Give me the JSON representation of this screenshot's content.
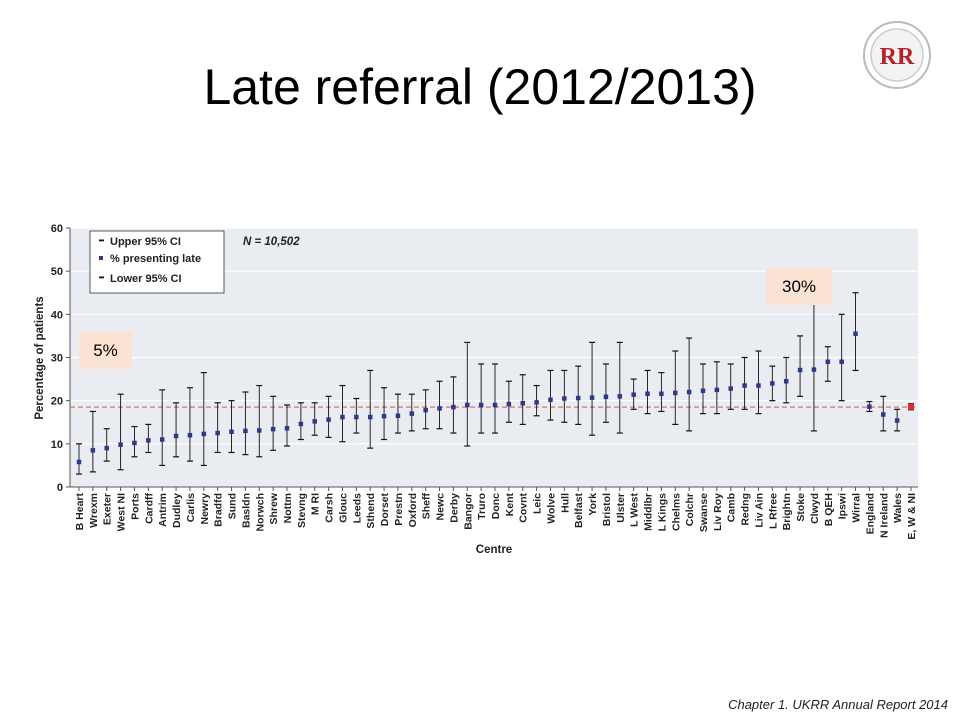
{
  "slide": {
    "title": "Late referral (2012/2013)",
    "caption": "Chapter 1. UKRR Annual Report 2014",
    "logo_text": "RR",
    "callouts": [
      {
        "text": "5%"
      },
      {
        "text": "30%"
      }
    ]
  },
  "colors": {
    "plot_bg": "#e9edf2",
    "marker": "#2b3a8c",
    "marker_highlight": "#e03030",
    "whisker": "#111111",
    "reference_line": "#e07070",
    "callout_bg": "#fbe3d3",
    "logo_red": "#b5222a"
  },
  "chart_data": {
    "type": "scatter",
    "title": "",
    "xlabel": "Centre",
    "ylabel": "Percentage of patients",
    "ylim": [
      0,
      60
    ],
    "yticks": [
      0,
      10,
      20,
      30,
      40,
      50,
      60
    ],
    "grid": true,
    "legend_position": "top-left",
    "legend": [
      "Upper 95% CI",
      "% presenting late",
      "Lower 95% CI"
    ],
    "n_label": "N = 10,502",
    "reference_line": 18.5,
    "highlight_category": "E, W & NI",
    "categories": [
      "B Heart",
      "Wrexm",
      "Exeter",
      "West NI",
      "Ports",
      "Cardff",
      "Antrim",
      "Dudley",
      "Carlis",
      "Newry",
      "Bradfd",
      "Sund",
      "Basldn",
      "Norwch",
      "Shrew",
      "Nottm",
      "Stevng",
      "M RI",
      "Carsh",
      "Glouc",
      "Leeds",
      "Sthend",
      "Dorset",
      "Prestn",
      "Oxford",
      "Sheff",
      "Newc",
      "Derby",
      "Bangor",
      "Truro",
      "Donc",
      "Kent",
      "Covnt",
      "Leic",
      "Wolve",
      "Hull",
      "Belfast",
      "York",
      "Bristol",
      "Ulster",
      "L West",
      "Middlbr",
      "L Kings",
      "Chelms",
      "Colchr",
      "Swanse",
      "Liv Roy",
      "Camb",
      "Redng",
      "Liv Ain",
      "L Rfree",
      "Brightn",
      "Stoke",
      "Clwyd",
      "B QEH",
      "Ipswi",
      "Wirral",
      "England",
      "N Ireland",
      "Wales",
      "E, W & NI"
    ],
    "series": [
      {
        "name": "% presenting late",
        "values": [
          5.8,
          8.5,
          9.0,
          9.8,
          10.2,
          10.8,
          11.0,
          11.8,
          12.0,
          12.3,
          12.5,
          12.8,
          13.0,
          13.1,
          13.4,
          13.6,
          14.6,
          15.2,
          15.6,
          16.2,
          16.2,
          16.2,
          16.4,
          16.5,
          17.0,
          17.8,
          18.2,
          18.5,
          19.0,
          19.0,
          19.0,
          19.2,
          19.4,
          19.6,
          20.2,
          20.5,
          20.6,
          20.7,
          20.9,
          21.0,
          21.4,
          21.6,
          21.6,
          21.8,
          22.0,
          22.3,
          22.5,
          22.8,
          23.5,
          23.5,
          24.0,
          24.5,
          27.1,
          27.2,
          29.0,
          29.0,
          35.5,
          18.6,
          16.8,
          15.4,
          18.6
        ]
      },
      {
        "name": "Upper 95% CI",
        "values": [
          10.0,
          17.5,
          13.5,
          21.5,
          14.0,
          14.5,
          22.5,
          19.5,
          23.0,
          26.5,
          19.5,
          20.0,
          22.0,
          23.5,
          21.0,
          19.0,
          19.5,
          19.5,
          21.0,
          23.5,
          20.5,
          27.0,
          23.0,
          21.5,
          21.5,
          22.5,
          24.5,
          25.5,
          33.5,
          28.5,
          28.5,
          24.5,
          26.0,
          23.5,
          27.0,
          27.0,
          28.0,
          33.5,
          28.5,
          33.5,
          25.0,
          27.0,
          26.5,
          31.5,
          34.5,
          28.5,
          29.0,
          28.5,
          30.0,
          31.5,
          28.0,
          30.0,
          35.0,
          47.0,
          32.5,
          40.0,
          45.0,
          19.8,
          21.0,
          18.0,
          19.3
        ]
      },
      {
        "name": "Lower 95% CI",
        "values": [
          3.0,
          3.5,
          6.0,
          4.0,
          7.0,
          8.0,
          5.0,
          7.0,
          6.0,
          5.0,
          8.0,
          8.0,
          7.5,
          7.0,
          8.5,
          9.5,
          11.0,
          12.0,
          11.5,
          10.5,
          12.5,
          9.0,
          11.0,
          12.5,
          13.0,
          13.5,
          13.5,
          12.5,
          9.5,
          12.5,
          12.5,
          15.0,
          14.5,
          16.5,
          15.5,
          15.0,
          14.5,
          12.0,
          15.0,
          12.5,
          18.0,
          17.0,
          17.5,
          14.5,
          13.0,
          17.0,
          17.0,
          18.0,
          18.0,
          17.0,
          20.0,
          19.5,
          21.0,
          13.0,
          24.5,
          20.0,
          27.0,
          17.5,
          13.0,
          13.0,
          17.9
        ]
      }
    ]
  }
}
